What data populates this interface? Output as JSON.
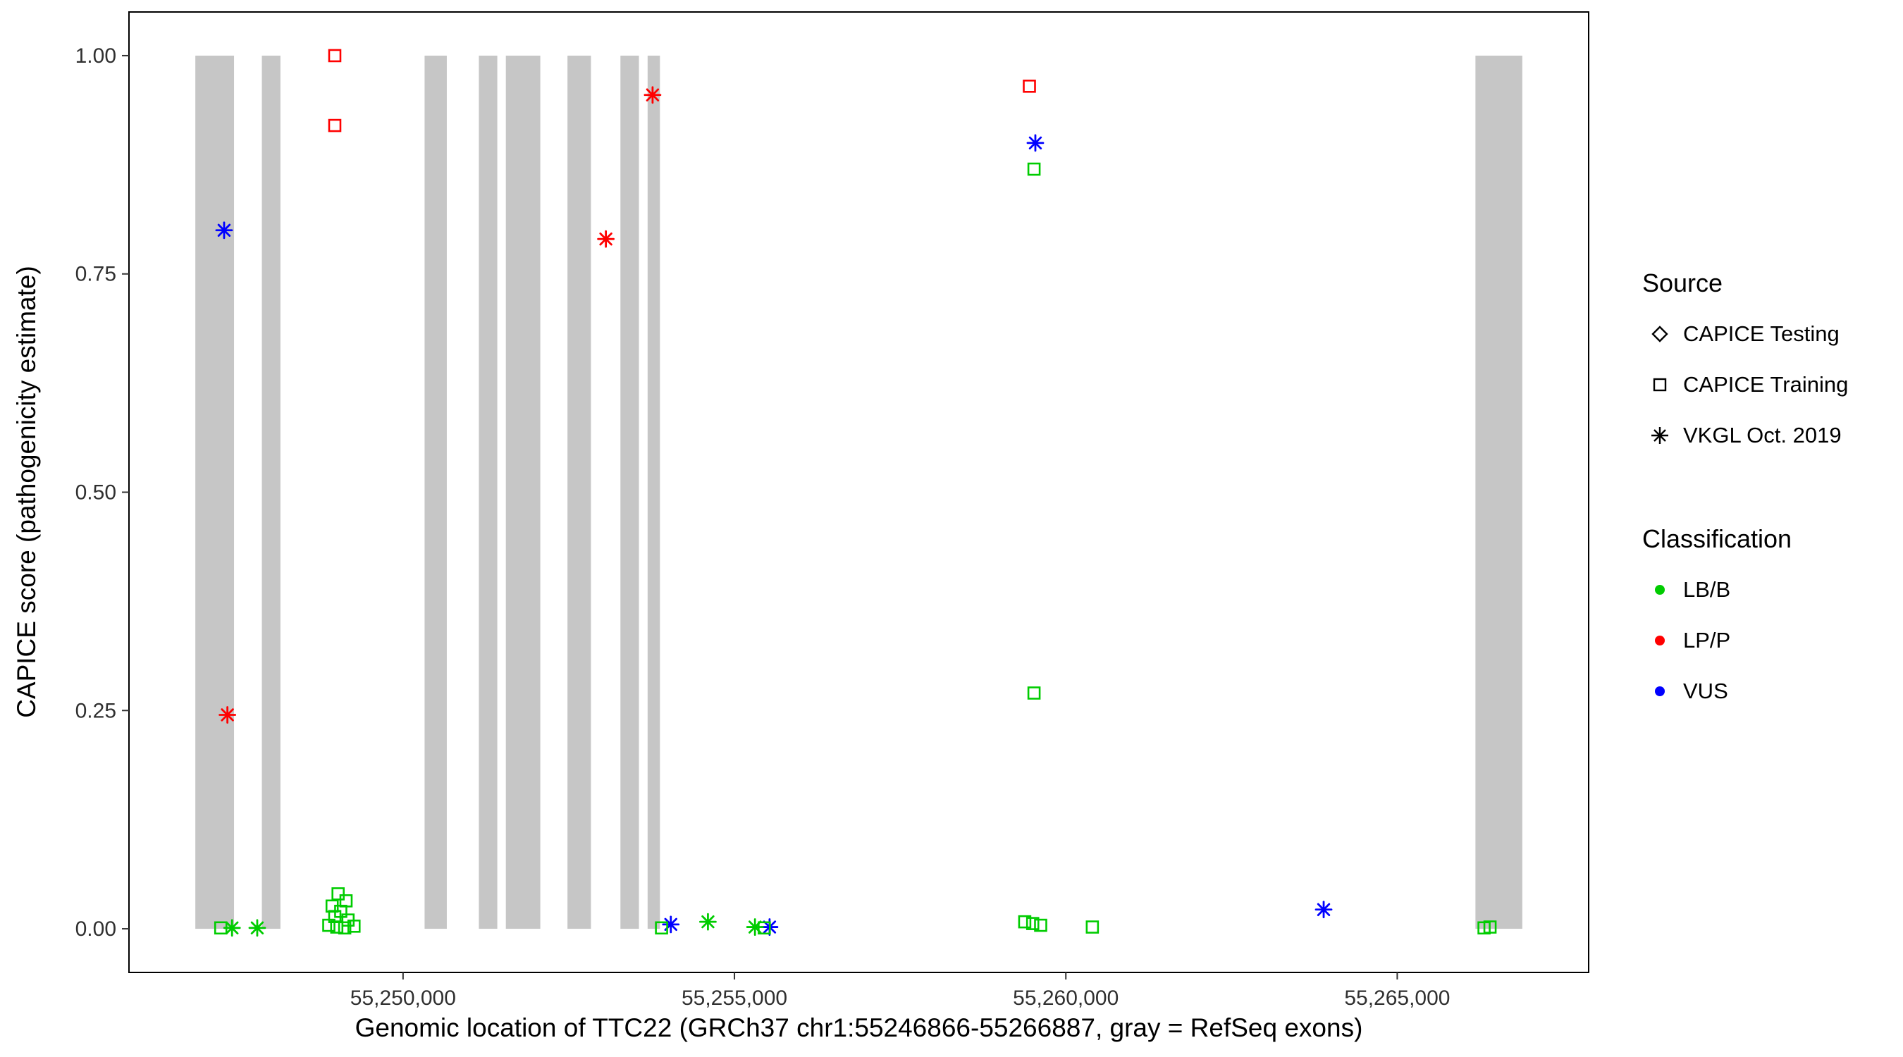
{
  "chart_data": {
    "type": "scatter",
    "title": "",
    "xlabel": "Genomic location of TTC22 (GRCh37 chr1:55246866-55266887, gray = RefSeq exons)",
    "ylabel": "CAPICE score (pathogenicity estimate)",
    "xlim": [
      55245865,
      55267888
    ],
    "ylim": [
      -0.05,
      1.05
    ],
    "grid": false,
    "legend_position": "right",
    "panel_border_color": "#000000",
    "exon_color": "#C6C6C6",
    "x_ticks": [
      {
        "value": 55250000,
        "label": "55,250,000"
      },
      {
        "value": 55255000,
        "label": "55,255,000"
      },
      {
        "value": 55260000,
        "label": "55,260,000"
      },
      {
        "value": 55265000,
        "label": "55,265,000"
      }
    ],
    "y_ticks": [
      {
        "value": 0.0,
        "label": "0.00"
      },
      {
        "value": 0.25,
        "label": "0.25"
      },
      {
        "value": 0.5,
        "label": "0.50"
      },
      {
        "value": 0.75,
        "label": "0.75"
      },
      {
        "value": 1.0,
        "label": "1.00"
      }
    ],
    "colors": {
      "LB/B": "#00CC00",
      "LP/P": "#FF0000",
      "VUS": "#0000FF"
    },
    "shapes": {
      "CAPICE Testing": "diamond",
      "CAPICE Training": "square",
      "VKGL Oct. 2019": "asterisk"
    },
    "exons": [
      [
        55246866,
        55247450
      ],
      [
        55247870,
        55248150
      ],
      [
        55250325,
        55250660
      ],
      [
        55251144,
        55251422
      ],
      [
        55251551,
        55252071
      ],
      [
        55252481,
        55252835
      ],
      [
        55253280,
        55253559
      ],
      [
        55253690,
        55253876
      ],
      [
        55266180,
        55266887
      ]
    ],
    "points": [
      {
        "x": 55248970,
        "y": 1.0,
        "source": "CAPICE Training",
        "classification": "LP/P"
      },
      {
        "x": 55248970,
        "y": 0.92,
        "source": "CAPICE Training",
        "classification": "LP/P"
      },
      {
        "x": 55259450,
        "y": 0.965,
        "source": "CAPICE Training",
        "classification": "LP/P"
      },
      {
        "x": 55247350,
        "y": 0.245,
        "source": "VKGL Oct. 2019",
        "classification": "LP/P"
      },
      {
        "x": 55253060,
        "y": 0.79,
        "source": "VKGL Oct. 2019",
        "classification": "LP/P"
      },
      {
        "x": 55253765,
        "y": 0.955,
        "source": "VKGL Oct. 2019",
        "classification": "LP/P"
      },
      {
        "x": 55247300,
        "y": 0.8,
        "source": "VKGL Oct. 2019",
        "classification": "VUS"
      },
      {
        "x": 55259540,
        "y": 0.9,
        "source": "VKGL Oct. 2019",
        "classification": "VUS"
      },
      {
        "x": 55254040,
        "y": 0.005,
        "source": "VKGL Oct. 2019",
        "classification": "VUS"
      },
      {
        "x": 55255530,
        "y": 0.002,
        "source": "VKGL Oct. 2019",
        "classification": "VUS"
      },
      {
        "x": 55263890,
        "y": 0.022,
        "source": "VKGL Oct. 2019",
        "classification": "VUS"
      },
      {
        "x": 55259520,
        "y": 0.87,
        "source": "CAPICE Training",
        "classification": "LB/B"
      },
      {
        "x": 55259520,
        "y": 0.27,
        "source": "CAPICE Training",
        "classification": "LB/B"
      },
      {
        "x": 55249020,
        "y": 0.04,
        "source": "CAPICE Training",
        "classification": "LB/B"
      },
      {
        "x": 55249140,
        "y": 0.032,
        "source": "CAPICE Training",
        "classification": "LB/B"
      },
      {
        "x": 55248930,
        "y": 0.026,
        "source": "CAPICE Training",
        "classification": "LB/B"
      },
      {
        "x": 55249060,
        "y": 0.02,
        "source": "CAPICE Training",
        "classification": "LB/B"
      },
      {
        "x": 55248970,
        "y": 0.014,
        "source": "CAPICE Training",
        "classification": "LB/B"
      },
      {
        "x": 55249170,
        "y": 0.01,
        "source": "CAPICE Training",
        "classification": "LB/B"
      },
      {
        "x": 55248880,
        "y": 0.004,
        "source": "CAPICE Training",
        "classification": "LB/B"
      },
      {
        "x": 55249000,
        "y": 0.002,
        "source": "CAPICE Training",
        "classification": "LB/B"
      },
      {
        "x": 55249120,
        "y": 0.001,
        "source": "CAPICE Training",
        "classification": "LB/B"
      },
      {
        "x": 55249260,
        "y": 0.003,
        "source": "CAPICE Training",
        "classification": "LB/B"
      },
      {
        "x": 55247250,
        "y": 0.001,
        "source": "CAPICE Training",
        "classification": "LB/B"
      },
      {
        "x": 55253900,
        "y": 0.001,
        "source": "CAPICE Training",
        "classification": "LB/B"
      },
      {
        "x": 55255450,
        "y": 0.001,
        "source": "CAPICE Training",
        "classification": "LB/B"
      },
      {
        "x": 55259380,
        "y": 0.008,
        "source": "CAPICE Training",
        "classification": "LB/B"
      },
      {
        "x": 55259500,
        "y": 0.006,
        "source": "CAPICE Training",
        "classification": "LB/B"
      },
      {
        "x": 55259620,
        "y": 0.004,
        "source": "CAPICE Training",
        "classification": "LB/B"
      },
      {
        "x": 55260400,
        "y": 0.002,
        "source": "CAPICE Training",
        "classification": "LB/B"
      },
      {
        "x": 55266310,
        "y": 0.001,
        "source": "CAPICE Training",
        "classification": "LB/B"
      },
      {
        "x": 55266400,
        "y": 0.002,
        "source": "CAPICE Training",
        "classification": "LB/B"
      },
      {
        "x": 55247420,
        "y": 0.001,
        "source": "VKGL Oct. 2019",
        "classification": "LB/B"
      },
      {
        "x": 55247800,
        "y": 0.001,
        "source": "VKGL Oct. 2019",
        "classification": "LB/B"
      },
      {
        "x": 55254600,
        "y": 0.008,
        "source": "VKGL Oct. 2019",
        "classification": "LB/B"
      },
      {
        "x": 55255310,
        "y": 0.002,
        "source": "VKGL Oct. 2019",
        "classification": "LB/B"
      }
    ]
  },
  "legend": {
    "source": {
      "title": "Source",
      "items": [
        {
          "label": "CAPICE Testing",
          "shape": "diamond"
        },
        {
          "label": "CAPICE Training",
          "shape": "square"
        },
        {
          "label": "VKGL Oct. 2019",
          "shape": "asterisk"
        }
      ]
    },
    "classification": {
      "title": "Classification",
      "items": [
        {
          "label": "LB/B",
          "color": "#00CC00"
        },
        {
          "label": "LP/P",
          "color": "#FF0000"
        },
        {
          "label": "VUS",
          "color": "#0000FF"
        }
      ]
    }
  }
}
